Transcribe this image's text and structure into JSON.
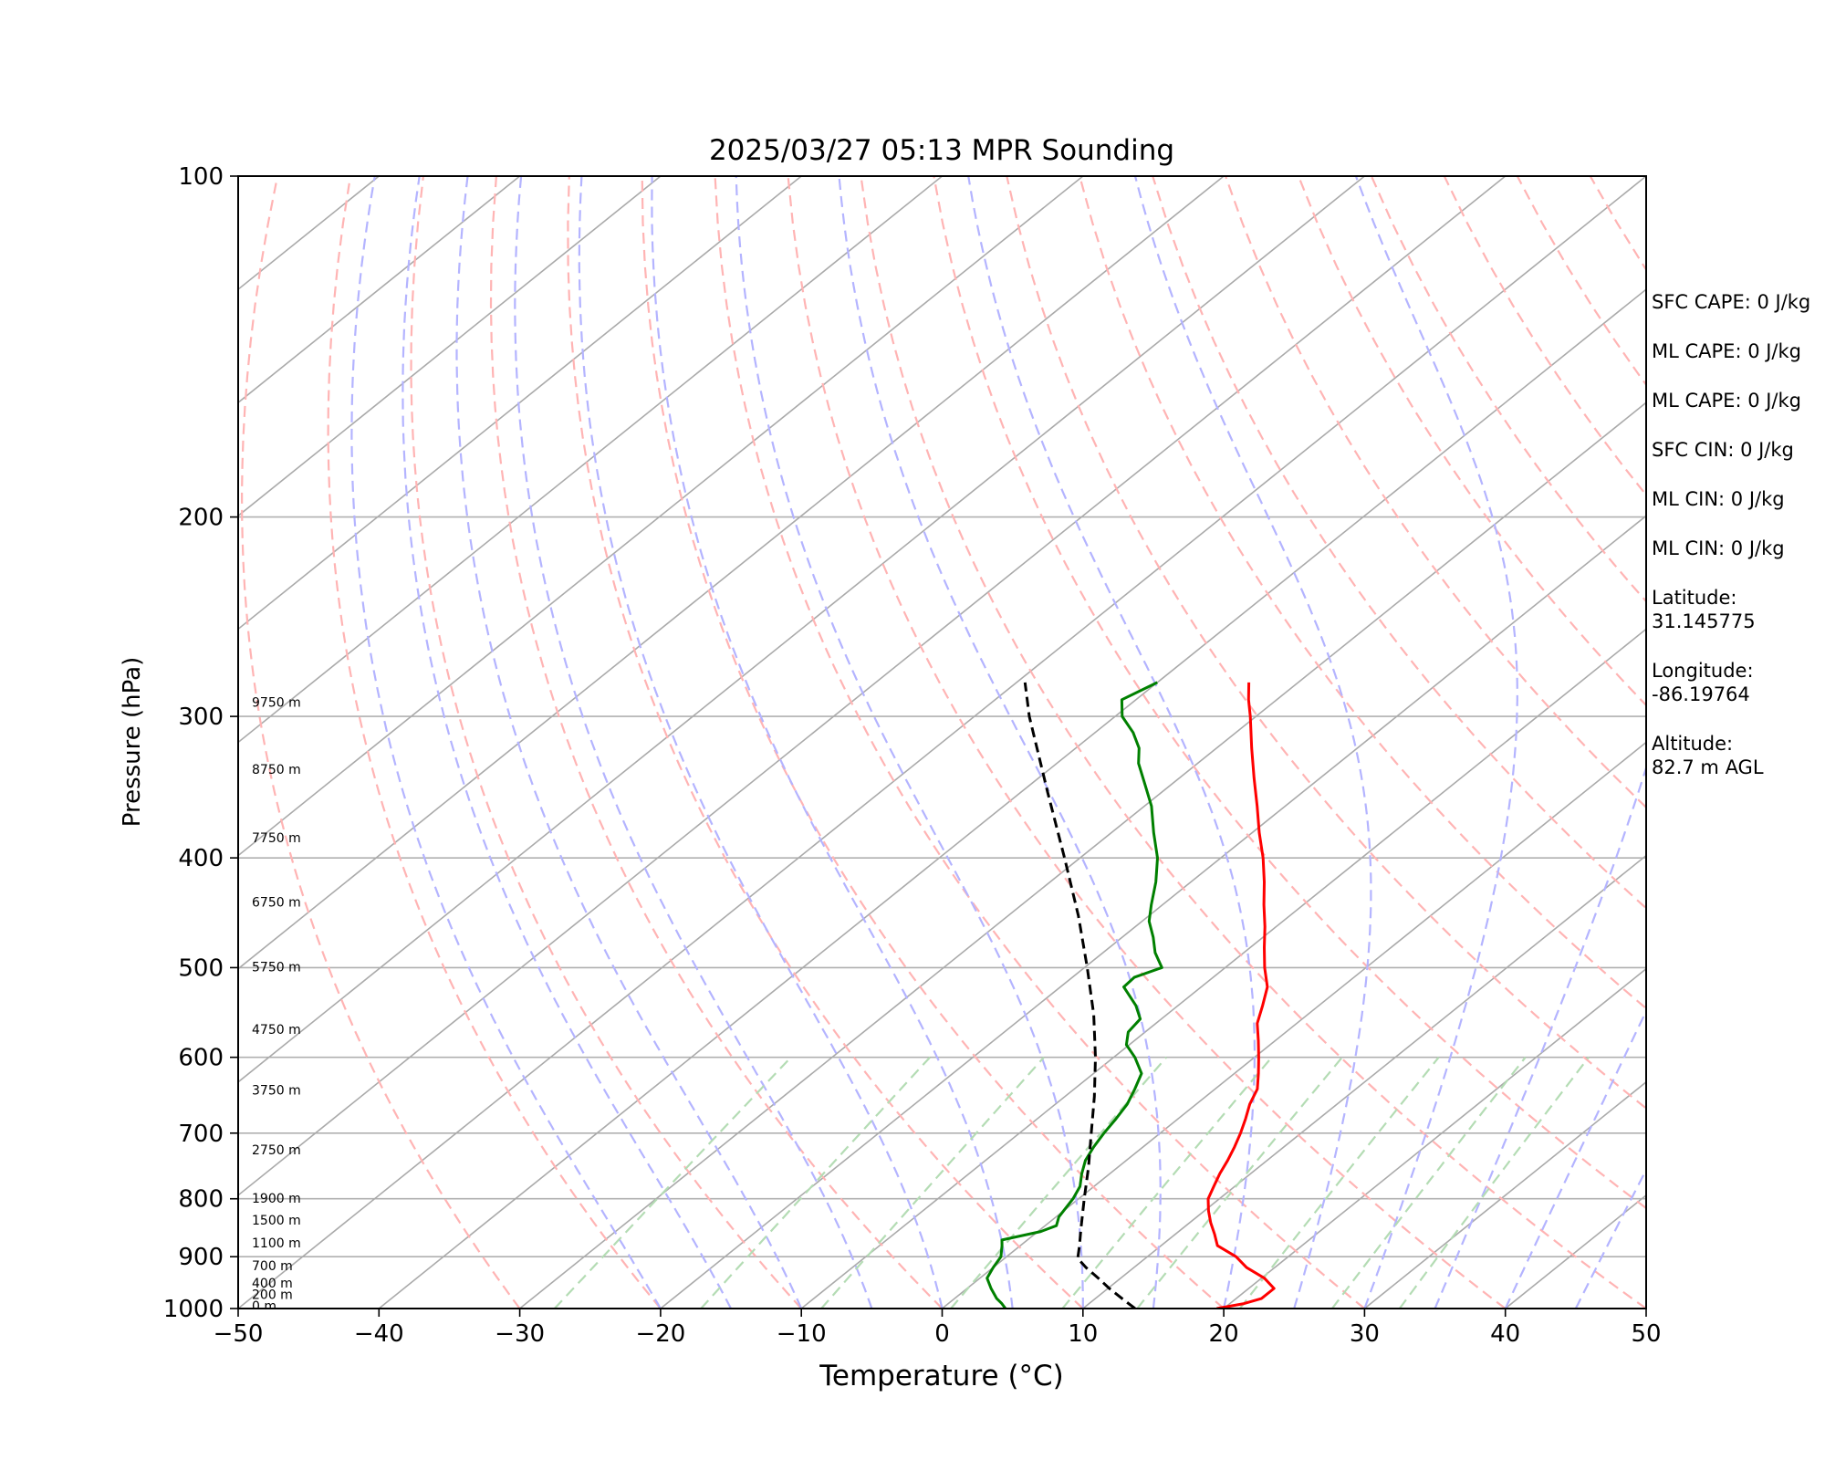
{
  "chart_data": {
    "type": "line",
    "chart_kind": "skew-T log-P sounding",
    "title": "2025/03/27 05:13 MPR Sounding",
    "xlabel": "Temperature (°C)",
    "ylabel": "Pressure (hPa)",
    "xlim": [
      -50,
      50
    ],
    "ylim": [
      1000,
      100
    ],
    "y_scale": "log",
    "grid": true,
    "x_ticks": [
      "−50",
      "−40",
      "−30",
      "−20",
      "−10",
      "0",
      "10",
      "20",
      "30",
      "40",
      "50"
    ],
    "x_tick_values": [
      -50,
      -40,
      -30,
      -20,
      -10,
      0,
      10,
      20,
      30,
      40,
      50
    ],
    "y_ticks": [
      "100",
      "200",
      "300",
      "400",
      "500",
      "600",
      "700",
      "800",
      "900",
      "1000"
    ],
    "y_tick_values": [
      100,
      200,
      300,
      400,
      500,
      600,
      700,
      800,
      900,
      1000
    ],
    "height_labels": [
      {
        "text": "0 m",
        "p": 1000
      },
      {
        "text": "200 m",
        "p": 977
      },
      {
        "text": "400 m",
        "p": 955
      },
      {
        "text": "700 m",
        "p": 922
      },
      {
        "text": "1100 m",
        "p": 880
      },
      {
        "text": "1500 m",
        "p": 840
      },
      {
        "text": "1900 m",
        "p": 803
      },
      {
        "text": "2750 m",
        "p": 728
      },
      {
        "text": "3750 m",
        "p": 645
      },
      {
        "text": "4750 m",
        "p": 570
      },
      {
        "text": "5750 m",
        "p": 502
      },
      {
        "text": "6750 m",
        "p": 440
      },
      {
        "text": "7750 m",
        "p": 386
      },
      {
        "text": "8750 m",
        "p": 336
      },
      {
        "text": "9750 m",
        "p": 293
      }
    ],
    "series": [
      {
        "role": "temperature",
        "color": "#ff0000",
        "points": [
          {
            "p": 1000,
            "t": 19.5
          },
          {
            "p": 990,
            "t": 21.0
          },
          {
            "p": 980,
            "t": 21.8
          },
          {
            "p": 960,
            "t": 21.8
          },
          {
            "p": 940,
            "t": 20.2
          },
          {
            "p": 920,
            "t": 18.0
          },
          {
            "p": 900,
            "t": 16.3
          },
          {
            "p": 880,
            "t": 14.0
          },
          {
            "p": 860,
            "t": 12.8
          },
          {
            "p": 840,
            "t": 11.5
          },
          {
            "p": 820,
            "t": 10.3
          },
          {
            "p": 800,
            "t": 9.2
          },
          {
            "p": 780,
            "t": 8.5
          },
          {
            "p": 760,
            "t": 7.8
          },
          {
            "p": 740,
            "t": 7.2
          },
          {
            "p": 720,
            "t": 6.5
          },
          {
            "p": 700,
            "t": 5.7
          },
          {
            "p": 680,
            "t": 4.8
          },
          {
            "p": 660,
            "t": 3.8
          },
          {
            "p": 640,
            "t": 3.0
          },
          {
            "p": 620,
            "t": 1.7
          },
          {
            "p": 600,
            "t": 0.3
          },
          {
            "p": 580,
            "t": -1.2
          },
          {
            "p": 560,
            "t": -2.8
          },
          {
            "p": 540,
            "t": -4.0
          },
          {
            "p": 520,
            "t": -5.3
          },
          {
            "p": 500,
            "t": -7.2
          },
          {
            "p": 480,
            "t": -9.0
          },
          {
            "p": 460,
            "t": -10.8
          },
          {
            "p": 440,
            "t": -12.8
          },
          {
            "p": 420,
            "t": -14.8
          },
          {
            "p": 400,
            "t": -17.0
          },
          {
            "p": 380,
            "t": -19.5
          },
          {
            "p": 360,
            "t": -22.0
          },
          {
            "p": 340,
            "t": -24.7
          },
          {
            "p": 320,
            "t": -27.5
          },
          {
            "p": 300,
            "t": -30.4
          },
          {
            "p": 290,
            "t": -32.0
          },
          {
            "p": 280,
            "t": -33.5
          }
        ]
      },
      {
        "role": "dewpoint",
        "color": "#008000",
        "points": [
          {
            "p": 1000,
            "t": 4.5
          },
          {
            "p": 990,
            "t": 3.8
          },
          {
            "p": 980,
            "t": 3.0
          },
          {
            "p": 960,
            "t": 1.7
          },
          {
            "p": 940,
            "t": 0.5
          },
          {
            "p": 920,
            "t": 0.0
          },
          {
            "p": 900,
            "t": -0.4
          },
          {
            "p": 880,
            "t": -1.3
          },
          {
            "p": 870,
            "t": -1.8
          },
          {
            "p": 855,
            "t": 0.2
          },
          {
            "p": 845,
            "t": 0.8
          },
          {
            "p": 830,
            "t": 0.2
          },
          {
            "p": 800,
            "t": -0.4
          },
          {
            "p": 780,
            "t": -1.0
          },
          {
            "p": 760,
            "t": -2.0
          },
          {
            "p": 740,
            "t": -2.9
          },
          {
            "p": 720,
            "t": -3.5
          },
          {
            "p": 700,
            "t": -4.0
          },
          {
            "p": 680,
            "t": -4.4
          },
          {
            "p": 660,
            "t": -4.9
          },
          {
            "p": 640,
            "t": -5.7
          },
          {
            "p": 620,
            "t": -6.6
          },
          {
            "p": 600,
            "t": -8.5
          },
          {
            "p": 585,
            "t": -10.2
          },
          {
            "p": 570,
            "t": -11.2
          },
          {
            "p": 555,
            "t": -11.5
          },
          {
            "p": 540,
            "t": -13.0
          },
          {
            "p": 520,
            "t": -15.5
          },
          {
            "p": 510,
            "t": -15.6
          },
          {
            "p": 500,
            "t": -14.5
          },
          {
            "p": 485,
            "t": -16.3
          },
          {
            "p": 470,
            "t": -17.8
          },
          {
            "p": 455,
            "t": -19.5
          },
          {
            "p": 440,
            "t": -20.8
          },
          {
            "p": 420,
            "t": -22.5
          },
          {
            "p": 400,
            "t": -24.5
          },
          {
            "p": 380,
            "t": -27.0
          },
          {
            "p": 360,
            "t": -29.5
          },
          {
            "p": 345,
            "t": -31.8
          },
          {
            "p": 330,
            "t": -34.2
          },
          {
            "p": 320,
            "t": -35.5
          },
          {
            "p": 310,
            "t": -37.3
          },
          {
            "p": 300,
            "t": -39.5
          },
          {
            "p": 290,
            "t": -41.0
          },
          {
            "p": 280,
            "t": -40.0
          }
        ]
      },
      {
        "role": "parcel",
        "color": "#000000",
        "style": "dashed",
        "points": [
          {
            "p": 1000,
            "t": 13.7
          },
          {
            "p": 980,
            "t": 11.9
          },
          {
            "p": 960,
            "t": 10.1
          },
          {
            "p": 940,
            "t": 8.4
          },
          {
            "p": 920,
            "t": 6.6
          },
          {
            "p": 903,
            "t": 5.2
          },
          {
            "p": 880,
            "t": 4.2
          },
          {
            "p": 850,
            "t": 2.8
          },
          {
            "p": 800,
            "t": 0.4
          },
          {
            "p": 750,
            "t": -2.1
          },
          {
            "p": 700,
            "t": -4.9
          },
          {
            "p": 650,
            "t": -7.9
          },
          {
            "p": 600,
            "t": -11.3
          },
          {
            "p": 550,
            "t": -15.2
          },
          {
            "p": 500,
            "t": -19.8
          },
          {
            "p": 450,
            "t": -25.0
          },
          {
            "p": 400,
            "t": -31.1
          },
          {
            "p": 350,
            "t": -38.1
          },
          {
            "p": 300,
            "t": -46.1
          },
          {
            "p": 280,
            "t": -49.4
          }
        ]
      }
    ],
    "reference_lines": {
      "isotherms_color": "#aaaaaa",
      "dry_adiabats_color": "#ffb4b4",
      "moist_adiabats_color": "#b4b4ff",
      "mixing_ratio_color": "#b4dcb4"
    },
    "stats": {
      "sfc_cape": "SFC CAPE: 0 J/kg",
      "ml_cape_1": "ML CAPE: 0 J/kg",
      "ml_cape_2": "ML CAPE: 0 J/kg",
      "sfc_cin": "SFC CIN: 0 J/kg",
      "ml_cin_1": "ML CIN: 0 J/kg",
      "ml_cin_2": "ML CIN: 0 J/kg",
      "latitude": "Latitude:\n31.145775",
      "longitude": "Longitude:\n-86.19764",
      "altitude": "Altitude:\n82.7 m AGL"
    }
  }
}
